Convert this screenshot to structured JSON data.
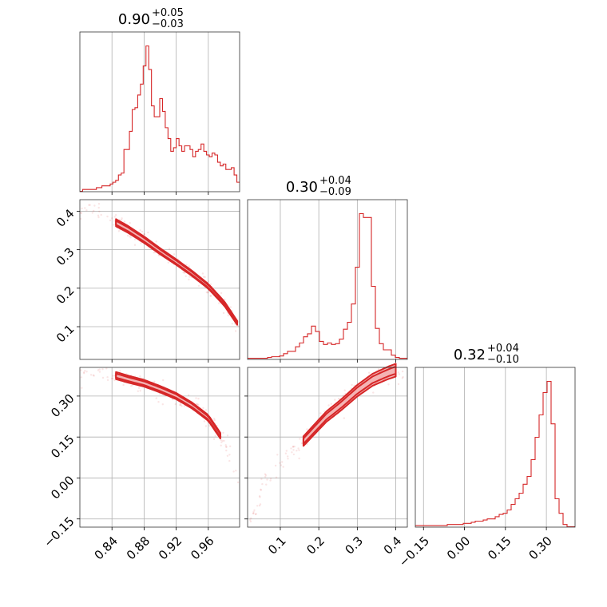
{
  "chart_data": {
    "type": "corner",
    "color": "#d62728",
    "parameters": [
      {
        "index": 0,
        "median": "0.90",
        "plus": "+0.05",
        "minus": "−0.03",
        "range": [
          0.8,
          0.999
        ],
        "ticks": [
          0.84,
          0.88,
          0.92,
          0.96
        ],
        "tick_labels": [
          "0.84",
          "0.88",
          "0.92",
          "0.96"
        ]
      },
      {
        "index": 1,
        "median": "0.30",
        "plus": "+0.04",
        "minus": "−0.09",
        "range": [
          0.015,
          0.43
        ],
        "ticks": [
          0.1,
          0.2,
          0.3,
          0.4
        ],
        "tick_labels": [
          "0.1",
          "0.2",
          "0.3",
          "0.4"
        ]
      },
      {
        "index": 2,
        "median": "0.32",
        "plus": "+0.04",
        "minus": "−0.10",
        "range": [
          -0.18,
          0.405
        ],
        "ticks": [
          -0.15,
          0.0,
          0.15,
          0.3
        ],
        "tick_labels": [
          "−0.15",
          "0.00",
          "0.15",
          "0.30"
        ]
      }
    ],
    "histograms": [
      {
        "param": 0,
        "bin_edges_range": [
          0.8,
          0.999
        ],
        "counts": [
          0,
          1,
          1,
          1,
          1,
          1,
          2,
          2,
          3,
          3,
          3,
          4,
          5,
          6,
          9,
          10,
          23,
          23,
          33,
          45,
          46,
          53,
          59,
          69,
          80,
          67,
          47,
          41,
          41,
          51,
          44,
          35,
          29,
          22,
          24,
          29,
          25,
          22,
          25,
          25,
          23,
          19,
          22,
          23,
          26,
          22,
          20,
          19,
          21,
          20,
          16,
          14,
          15,
          12,
          12,
          13,
          9,
          5
        ]
      },
      {
        "param": 1,
        "bin_edges_range": [
          0.015,
          0.43
        ],
        "counts": [
          1,
          1,
          1,
          1,
          1,
          2,
          3,
          3,
          4,
          7,
          10,
          10,
          16,
          21,
          29,
          33,
          43,
          36,
          23,
          19,
          21,
          19,
          20,
          26,
          39,
          48,
          72,
          120,
          190,
          185,
          185,
          95,
          40,
          20,
          12,
          12,
          5,
          2,
          1,
          1
        ]
      },
      {
        "param": 2,
        "bin_edges_range": [
          -0.18,
          0.405
        ],
        "counts": [
          1,
          1,
          1,
          1,
          1,
          1,
          1,
          1,
          2,
          2,
          2,
          2,
          3,
          3,
          4,
          5,
          5,
          6,
          7,
          7,
          9,
          11,
          12,
          15,
          20,
          25,
          30,
          38,
          45,
          60,
          80,
          100,
          120,
          130,
          92,
          25,
          12,
          2,
          0,
          0
        ]
      }
    ],
    "pair_trend": {
      "description_free": true,
      "relation_x0_x1": [
        [
          0.8,
          0.4
        ],
        [
          0.83,
          0.395
        ],
        [
          0.845,
          0.37
        ],
        [
          0.86,
          0.353
        ],
        [
          0.88,
          0.326
        ],
        [
          0.9,
          0.296
        ],
        [
          0.92,
          0.268
        ],
        [
          0.94,
          0.238
        ],
        [
          0.96,
          0.205
        ],
        [
          0.98,
          0.16
        ],
        [
          0.996,
          0.11
        ]
      ],
      "relation_x0_x2": [
        [
          0.8,
          0.4
        ],
        [
          0.83,
          0.392
        ],
        [
          0.845,
          0.375
        ],
        [
          0.86,
          0.362
        ],
        [
          0.88,
          0.347
        ],
        [
          0.9,
          0.325
        ],
        [
          0.92,
          0.3
        ],
        [
          0.94,
          0.265
        ],
        [
          0.96,
          0.22
        ],
        [
          0.975,
          0.155
        ],
        [
          0.99,
          0.06
        ],
        [
          0.998,
          -0.03
        ]
      ],
      "relation_x1_x2": [
        [
          0.02,
          -0.18
        ],
        [
          0.06,
          -0.01
        ],
        [
          0.12,
          0.08
        ],
        [
          0.16,
          0.135
        ],
        [
          0.18,
          0.165
        ],
        [
          0.22,
          0.225
        ],
        [
          0.26,
          0.27
        ],
        [
          0.3,
          0.32
        ],
        [
          0.34,
          0.36
        ],
        [
          0.38,
          0.385
        ],
        [
          0.4,
          0.395
        ]
      ]
    }
  }
}
